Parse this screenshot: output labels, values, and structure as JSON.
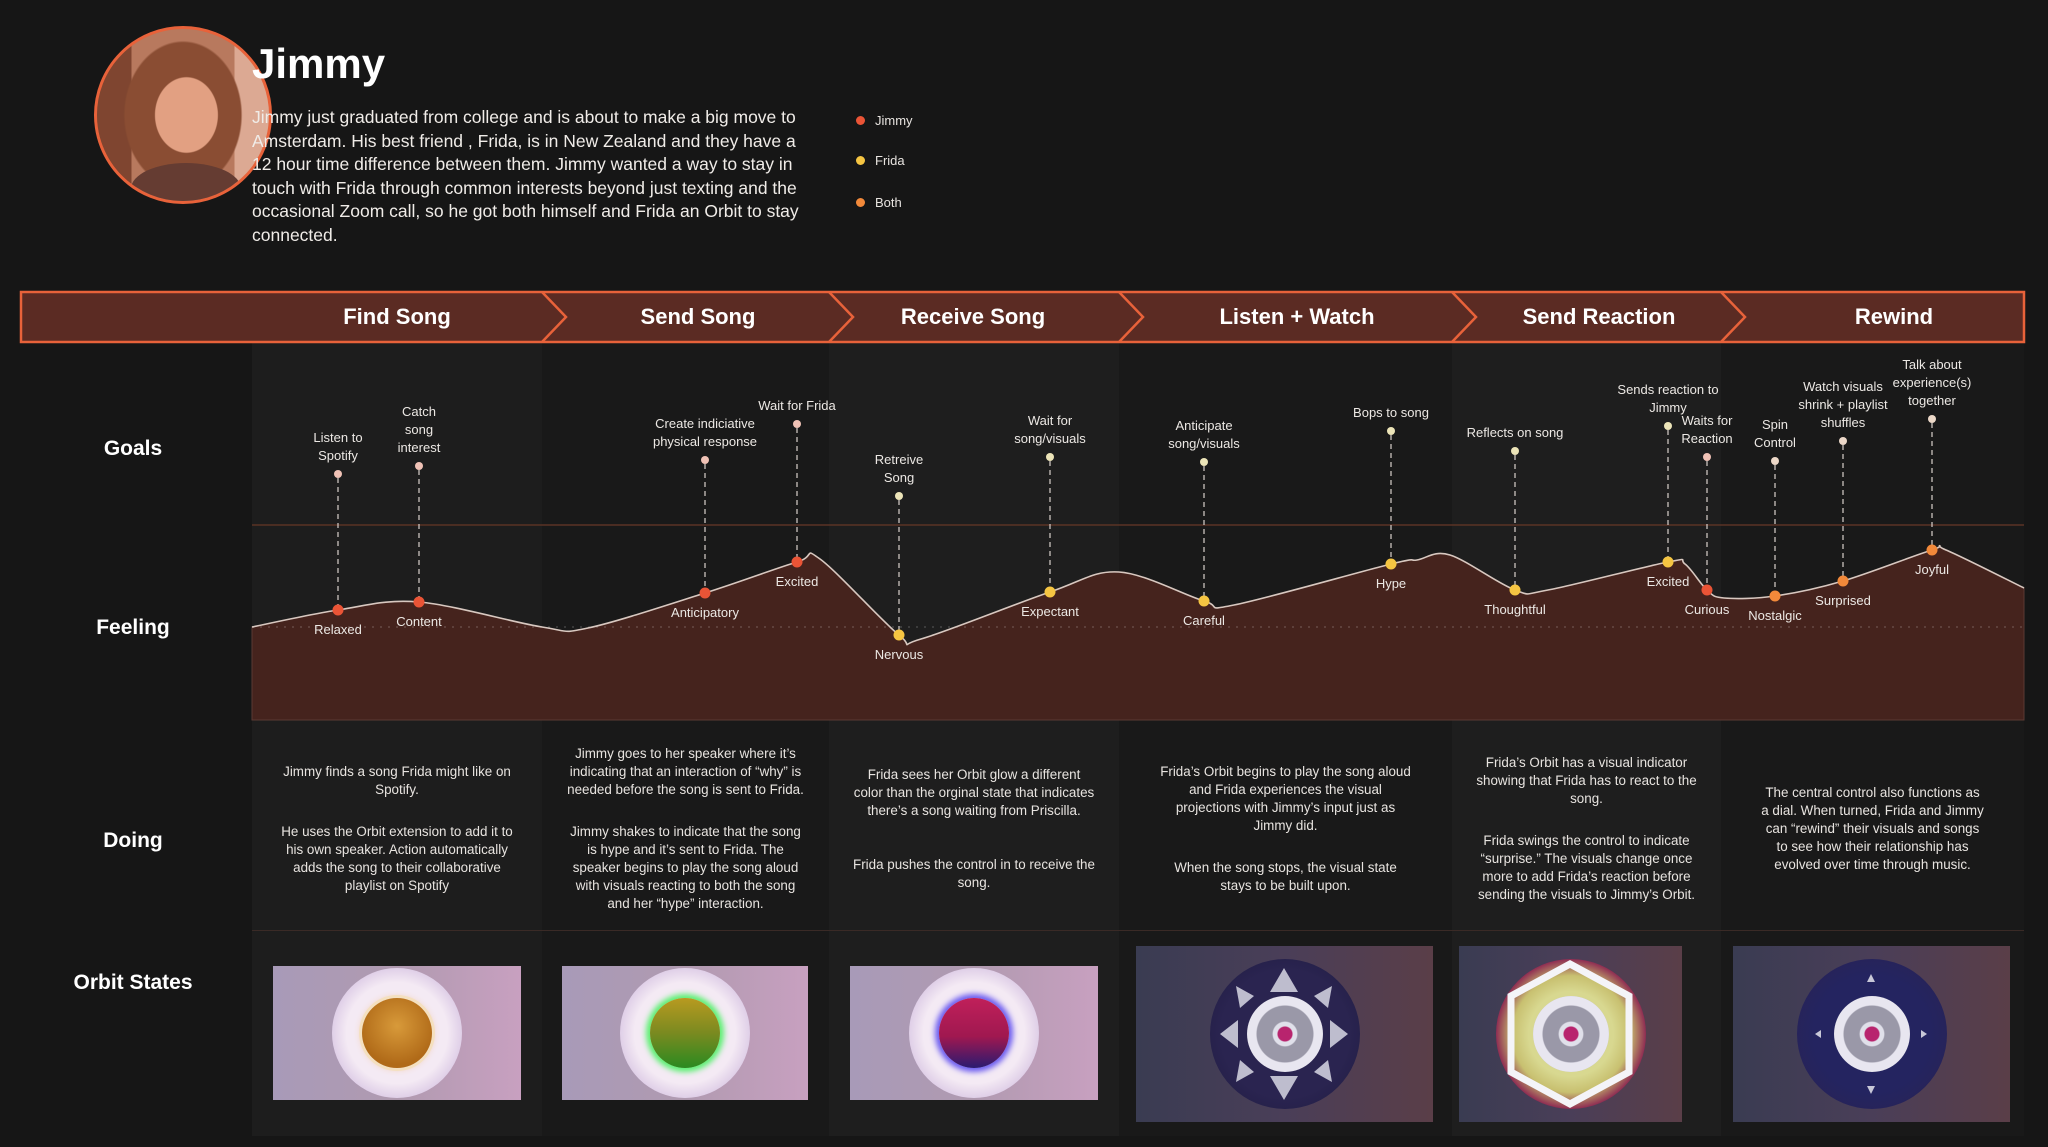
{
  "profile": {
    "name": "Jimmy",
    "bio": "Jimmy just graduated from college and is about to make a big move to Amsterdam. His best friend , Frida, is in New Zealand and they have a 12 hour time difference between them. Jimmy wanted a way to stay in touch with Frida through common interests beyond just texting and the occasional Zoom call, so he got both himself and Frida an Orbit to stay connected."
  },
  "legend": [
    {
      "label": "Jimmy",
      "color": "#ea5436"
    },
    {
      "label": "Frida",
      "color": "#f5c542"
    },
    {
      "label": "Both",
      "color": "#f2893a"
    }
  ],
  "row_labels": {
    "goals": "Goals",
    "feeling": "Feeling",
    "doing": "Doing",
    "orbit_states": "Orbit States"
  },
  "stages": [
    {
      "label": "Find Song",
      "doing": [
        "Jimmy finds a song Frida might like on Spotify.",
        "He uses the Orbit extension to add it to his own speaker. Action automatically adds the song to their collaborative playlist on Spotify"
      ],
      "orbit_state": "orange-glow"
    },
    {
      "label": "Send Song",
      "doing": [
        "Jimmy goes to her speaker where it’s indicating that an interaction of “why” is needed before the song is sent to Frida.",
        "Jimmy shakes to indicate that the song is hype and it’s sent to Frida. The speaker begins to play the song aloud with visuals reacting to both the song and her “hype” interaction."
      ],
      "orbit_state": "green-glow"
    },
    {
      "label": "Receive Song",
      "doing": [
        "Frida sees her Orbit glow a different color than the orginal state that indicates there’s a song waiting from Priscilla.",
        "Frida pushes the control in to receive the song."
      ],
      "orbit_state": "purple-glow"
    },
    {
      "label": "Listen + Watch",
      "doing": [
        "Frida’s Orbit begins to play the song aloud and Frida experiences the visual projections with Jimmy’s input just as Jimmy did.",
        "When the song stops, the visual state stays to be built upon."
      ],
      "orbit_state": "projection"
    },
    {
      "label": "Send Reaction",
      "doing": [
        "Frida’s Orbit has a visual indicator showing that Frida has to react to the song.",
        "Frida swings the control to indicate “surprise.” The visuals change once more to add Frida’s reaction before sending the visuals to Jimmy’s Orbit."
      ],
      "orbit_state": "reaction-projection"
    },
    {
      "label": "Rewind",
      "doing": [
        "The central control also functions as a dial. When turned, Frida and Jimmy can “rewind” their visuals and songs to see how their relationship has evolved over time through music."
      ],
      "orbit_state": "dial"
    }
  ],
  "goals": [
    {
      "lines": [
        "Listen to",
        "Spotify"
      ],
      "feeling": "Relaxed",
      "persona": "Jimmy"
    },
    {
      "lines": [
        "Catch",
        "song",
        "interest"
      ],
      "feeling": "Content",
      "persona": "Jimmy"
    },
    {
      "lines": [
        "Create indiciative",
        "physical response"
      ],
      "feeling": "Anticipatory",
      "persona": "Jimmy"
    },
    {
      "lines": [
        "Wait for Frida"
      ],
      "feeling": "Excited",
      "persona": "Jimmy"
    },
    {
      "lines": [
        "Retreive",
        "Song"
      ],
      "feeling": "Nervous",
      "persona": "Frida"
    },
    {
      "lines": [
        "Wait for",
        "song/visuals"
      ],
      "feeling": "Expectant",
      "persona": "Frida"
    },
    {
      "lines": [
        "Anticipate",
        "song/visuals"
      ],
      "feeling": "Careful",
      "persona": "Frida"
    },
    {
      "lines": [
        "Bops to song"
      ],
      "feeling": "Hype",
      "persona": "Frida"
    },
    {
      "lines": [
        "Reflects on song"
      ],
      "feeling": "Thoughtful",
      "persona": "Frida"
    },
    {
      "lines": [
        "Sends reaction to",
        "Jimmy"
      ],
      "feeling": "Excited",
      "persona": "Frida"
    },
    {
      "lines": [
        "Waits for",
        "Reaction"
      ],
      "feeling": "Curious",
      "persona": "Jimmy"
    },
    {
      "lines": [
        "Spin",
        "Control"
      ],
      "feeling": "Nostalgic",
      "persona": "Both"
    },
    {
      "lines": [
        "Watch visuals",
        "shrink + playlist",
        "shuffles"
      ],
      "feeling": "Surprised",
      "persona": "Both"
    },
    {
      "lines": [
        "Talk about",
        "experience(s)",
        "together"
      ],
      "feeling": "Joyful",
      "persona": "Both"
    }
  ],
  "colors": {
    "accent": "#e8623a",
    "stage_fill": "#5b2b23",
    "feeling_fill": "#45231d",
    "curve": "#d8c8c0"
  }
}
